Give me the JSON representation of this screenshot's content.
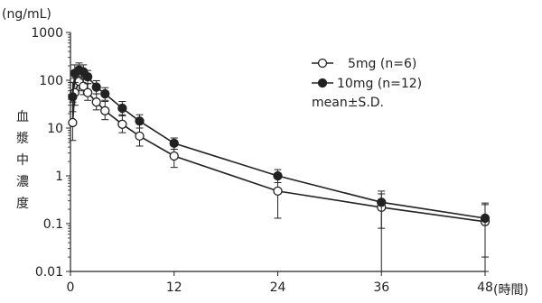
{
  "chart_data": {
    "type": "line",
    "unit_label": "(ng/mL)",
    "ylabel": "血漿中濃度",
    "x_unit_label": "(時間)",
    "y_scale": "log",
    "ylim": [
      0.01,
      1000
    ],
    "xlim": [
      0,
      48
    ],
    "x_ticks": [
      0,
      12,
      24,
      36,
      48
    ],
    "y_ticks": [
      0.01,
      0.1,
      1,
      10,
      100,
      1000
    ],
    "y_tick_labels": [
      "0.01",
      "0.1",
      "1",
      "10",
      "100",
      "1000"
    ],
    "x_tick_labels": [
      "0",
      "12",
      "24",
      "36",
      "48"
    ],
    "legend_position": "top-right",
    "legend_note": "mean±S.D.",
    "colors": {
      "line": "#222222",
      "filled_marker": "#222222",
      "open_marker_fill": "#ffffff"
    },
    "series": [
      {
        "name": "5mg (n=6)",
        "marker": "open-circle",
        "points": [
          {
            "x": 0.25,
            "y": 13,
            "sd_low": 5.5,
            "sd_high": 35
          },
          {
            "x": 0.5,
            "y": 55,
            "sd_low": 30,
            "sd_high": 110
          },
          {
            "x": 1,
            "y": 95,
            "sd_low": 60,
            "sd_high": 150
          },
          {
            "x": 1.5,
            "y": 75,
            "sd_low": 50,
            "sd_high": 120
          },
          {
            "x": 2,
            "y": 55,
            "sd_low": 38,
            "sd_high": 85
          },
          {
            "x": 3,
            "y": 35,
            "sd_low": 24,
            "sd_high": 52
          },
          {
            "x": 4,
            "y": 23,
            "sd_low": 15,
            "sd_high": 36
          },
          {
            "x": 6,
            "y": 12,
            "sd_low": 8,
            "sd_high": 19
          },
          {
            "x": 8,
            "y": 6.8,
            "sd_low": 4.2,
            "sd_high": 10
          },
          {
            "x": 12,
            "y": 2.6,
            "sd_low": 1.5,
            "sd_high": 4.3
          },
          {
            "x": 24,
            "y": 0.48,
            "sd_low": 0.13,
            "sd_high": 1.0
          },
          {
            "x": 36,
            "y": 0.22,
            "sd_low": 0.01,
            "sd_high": 0.42
          },
          {
            "x": 48,
            "y": 0.11,
            "sd_low": 0.01,
            "sd_high": 0.25
          }
        ]
      },
      {
        "name": "10mg (n=12)",
        "marker": "filled-circle",
        "points": [
          {
            "x": 0.25,
            "y": 45,
            "sd_low": 22,
            "sd_high": 90
          },
          {
            "x": 0.5,
            "y": 140,
            "sd_low": 90,
            "sd_high": 210
          },
          {
            "x": 1,
            "y": 165,
            "sd_low": 115,
            "sd_high": 230
          },
          {
            "x": 1.5,
            "y": 150,
            "sd_low": 105,
            "sd_high": 210
          },
          {
            "x": 2,
            "y": 118,
            "sd_low": 85,
            "sd_high": 160
          },
          {
            "x": 3,
            "y": 72,
            "sd_low": 52,
            "sd_high": 98
          },
          {
            "x": 4,
            "y": 52,
            "sd_low": 38,
            "sd_high": 70
          },
          {
            "x": 6,
            "y": 26,
            "sd_low": 18,
            "sd_high": 36
          },
          {
            "x": 8,
            "y": 14,
            "sd_low": 10,
            "sd_high": 19
          },
          {
            "x": 12,
            "y": 4.8,
            "sd_low": 3.6,
            "sd_high": 6.2
          },
          {
            "x": 24,
            "y": 1.0,
            "sd_low": 0.72,
            "sd_high": 1.35
          },
          {
            "x": 36,
            "y": 0.28,
            "sd_low": 0.08,
            "sd_high": 0.48
          },
          {
            "x": 48,
            "y": 0.13,
            "sd_low": 0.02,
            "sd_high": 0.27
          }
        ]
      }
    ]
  }
}
